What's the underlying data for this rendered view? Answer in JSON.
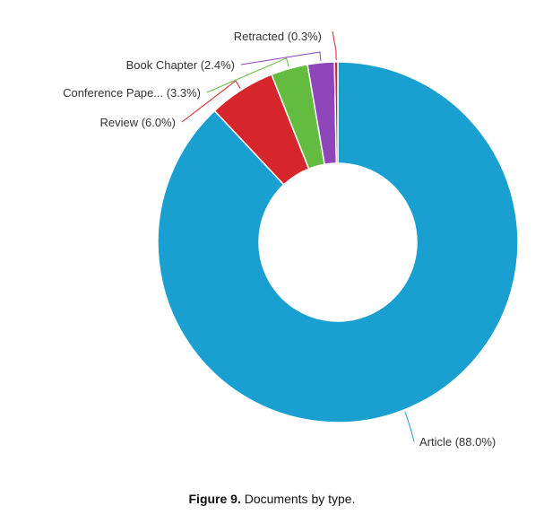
{
  "chart_data": {
    "type": "pie",
    "donut": true,
    "slices": [
      {
        "label": "Article (88.0%)",
        "name": "Article",
        "value": 88.0,
        "color": "#1aa0d0"
      },
      {
        "label": "Review (6.0%)",
        "name": "Review",
        "value": 6.0,
        "color": "#d6262c"
      },
      {
        "label": "Conference Pape... (3.3%)",
        "name": "Conference Pape...",
        "value": 3.3,
        "color": "#63bb3f"
      },
      {
        "label": "Book Chapter (2.4%)",
        "name": "Book Chapter",
        "value": 2.4,
        "color": "#8e46ba"
      },
      {
        "label": "Retracted (0.3%)",
        "name": "Retracted",
        "value": 0.3,
        "color": "#c6262c"
      }
    ]
  },
  "caption": {
    "label": "Figure 9.",
    "text": " Documents by type."
  }
}
